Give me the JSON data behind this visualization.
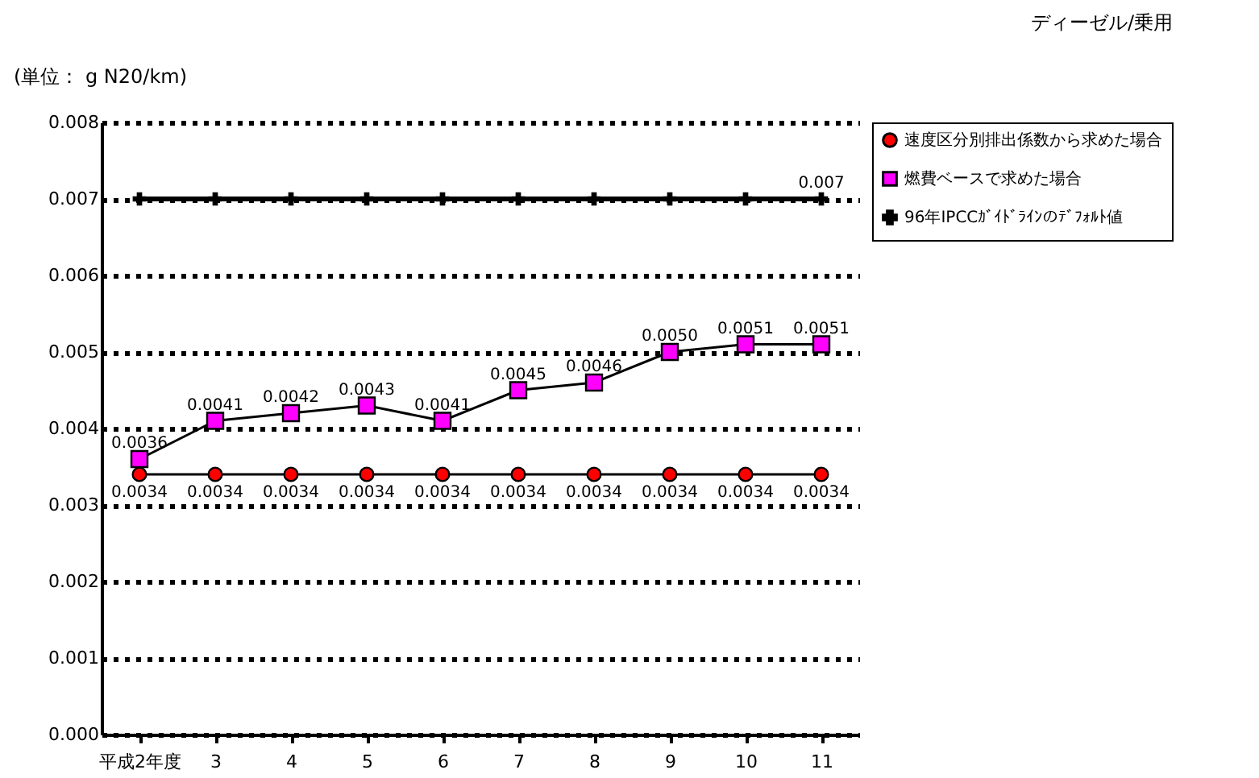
{
  "chart_data": {
    "type": "line",
    "title": "ディーゼル/乗用",
    "ylabel": "(単位： g N20/km)",
    "categories": [
      "平成2年度",
      "3",
      "4",
      "5",
      "6",
      "7",
      "8",
      "9",
      "10",
      "11"
    ],
    "series": [
      {
        "name": "速度区分別排出係数から求めた場合",
        "color": "#ff0000",
        "marker": "circle",
        "values": [
          0.0034,
          0.0034,
          0.0034,
          0.0034,
          0.0034,
          0.0034,
          0.0034,
          0.0034,
          0.0034,
          0.0034
        ],
        "value_labels": [
          "0.0034",
          "0.0034",
          "0.0034",
          "0.0034",
          "0.0034",
          "0.0034",
          "0.0034",
          "0.0034",
          "0.0034",
          "0.0034"
        ]
      },
      {
        "name": "燃費ベースで求めた場合",
        "color": "#ff00ff",
        "marker": "square",
        "values": [
          0.0036,
          0.0041,
          0.0042,
          0.0043,
          0.0041,
          0.0045,
          0.0046,
          0.005,
          0.0051,
          0.0051
        ],
        "value_labels": [
          "0.0036",
          "0.0041",
          "0.0042",
          "0.0043",
          "0.0041",
          "0.0045",
          "0.0046",
          "0.0050",
          "0.0051",
          "0.0051"
        ]
      },
      {
        "name": "96年IPCCｶﾞｲﾄﾞﾗｲﾝのﾃﾞﾌｫﾙﾄ値",
        "color": "#000000",
        "marker": "cross",
        "values": [
          0.007,
          0.007,
          0.007,
          0.007,
          0.007,
          0.007,
          0.007,
          0.007,
          0.007,
          0.007
        ],
        "value_labels": [
          null,
          null,
          null,
          null,
          null,
          null,
          null,
          null,
          null,
          "0.007"
        ]
      }
    ],
    "ylim": [
      0,
      0.008
    ],
    "yticks": [
      {
        "value": 0,
        "label": "0.000"
      },
      0.001,
      0.002,
      0.003,
      0.004,
      0.005,
      0.006,
      0.007,
      0.008
    ],
    "grid": "y",
    "legend": "top right",
    "line_style": "solid"
  }
}
